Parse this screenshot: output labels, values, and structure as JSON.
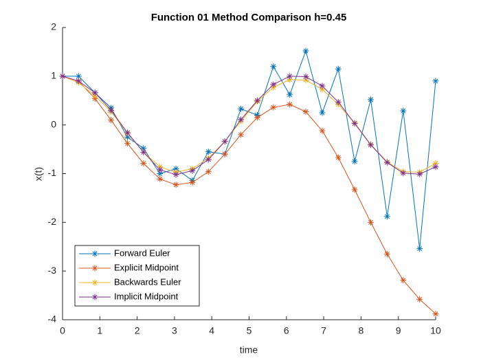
{
  "chart_data": {
    "type": "line",
    "title": "Function 01 Method Comparison h=0.45",
    "xlabel": "time",
    "ylabel": "x(t)",
    "x": [
      0,
      0.43,
      0.87,
      1.3,
      1.74,
      2.17,
      2.61,
      3.04,
      3.48,
      3.91,
      4.35,
      4.78,
      5.22,
      5.65,
      6.09,
      6.52,
      6.96,
      7.39,
      7.83,
      8.26,
      8.7,
      9.13,
      9.57,
      10
    ],
    "series": [
      {
        "name": "Forward Euler",
        "color": "#0072BD",
        "values": [
          1,
          1,
          0.66,
          0.35,
          -0.25,
          -0.48,
          -1.0,
          -0.9,
          -1.14,
          -0.55,
          -0.6,
          0.33,
          0.2,
          1.2,
          0.62,
          1.52,
          0.25,
          1.15,
          -0.75,
          0.52,
          -1.88,
          0.29,
          -2.54,
          0.9
        ]
      },
      {
        "name": "Explicit Midpoint",
        "color": "#D95319",
        "values": [
          1,
          0.9,
          0.54,
          0.1,
          -0.38,
          -0.79,
          -1.11,
          -1.23,
          -1.18,
          -0.96,
          -0.6,
          -0.2,
          0.15,
          0.36,
          0.42,
          0.27,
          -0.12,
          -0.67,
          -1.33,
          -2.0,
          -2.65,
          -3.19,
          -3.58,
          -3.88
        ]
      },
      {
        "name": "Backwards Euler",
        "color": "#EDB120",
        "values": [
          1,
          0.87,
          0.6,
          0.27,
          -0.17,
          -0.56,
          -0.86,
          -0.97,
          -0.9,
          -0.68,
          -0.34,
          0.08,
          0.48,
          0.77,
          0.93,
          0.92,
          0.73,
          0.42,
          0.04,
          -0.4,
          -0.76,
          -0.96,
          -0.97,
          -0.79
        ]
      },
      {
        "name": "Implicit Midpoint",
        "color": "#7E2F8E",
        "values": [
          1,
          0.9,
          0.66,
          0.3,
          -0.16,
          -0.56,
          -0.92,
          -1.02,
          -0.94,
          -0.71,
          -0.34,
          0.11,
          0.5,
          0.83,
          1.0,
          0.99,
          0.8,
          0.47,
          0.03,
          -0.41,
          -0.77,
          -0.99,
          -1.01,
          -0.86
        ]
      }
    ],
    "xlim": [
      0,
      10
    ],
    "xticks": [
      0,
      1,
      2,
      3,
      4,
      5,
      6,
      7,
      8,
      9,
      10
    ],
    "ylim": [
      -4,
      2
    ],
    "yticks": [
      -4,
      -3,
      -2,
      -1,
      0,
      1,
      2
    ],
    "legend": "lower left"
  }
}
